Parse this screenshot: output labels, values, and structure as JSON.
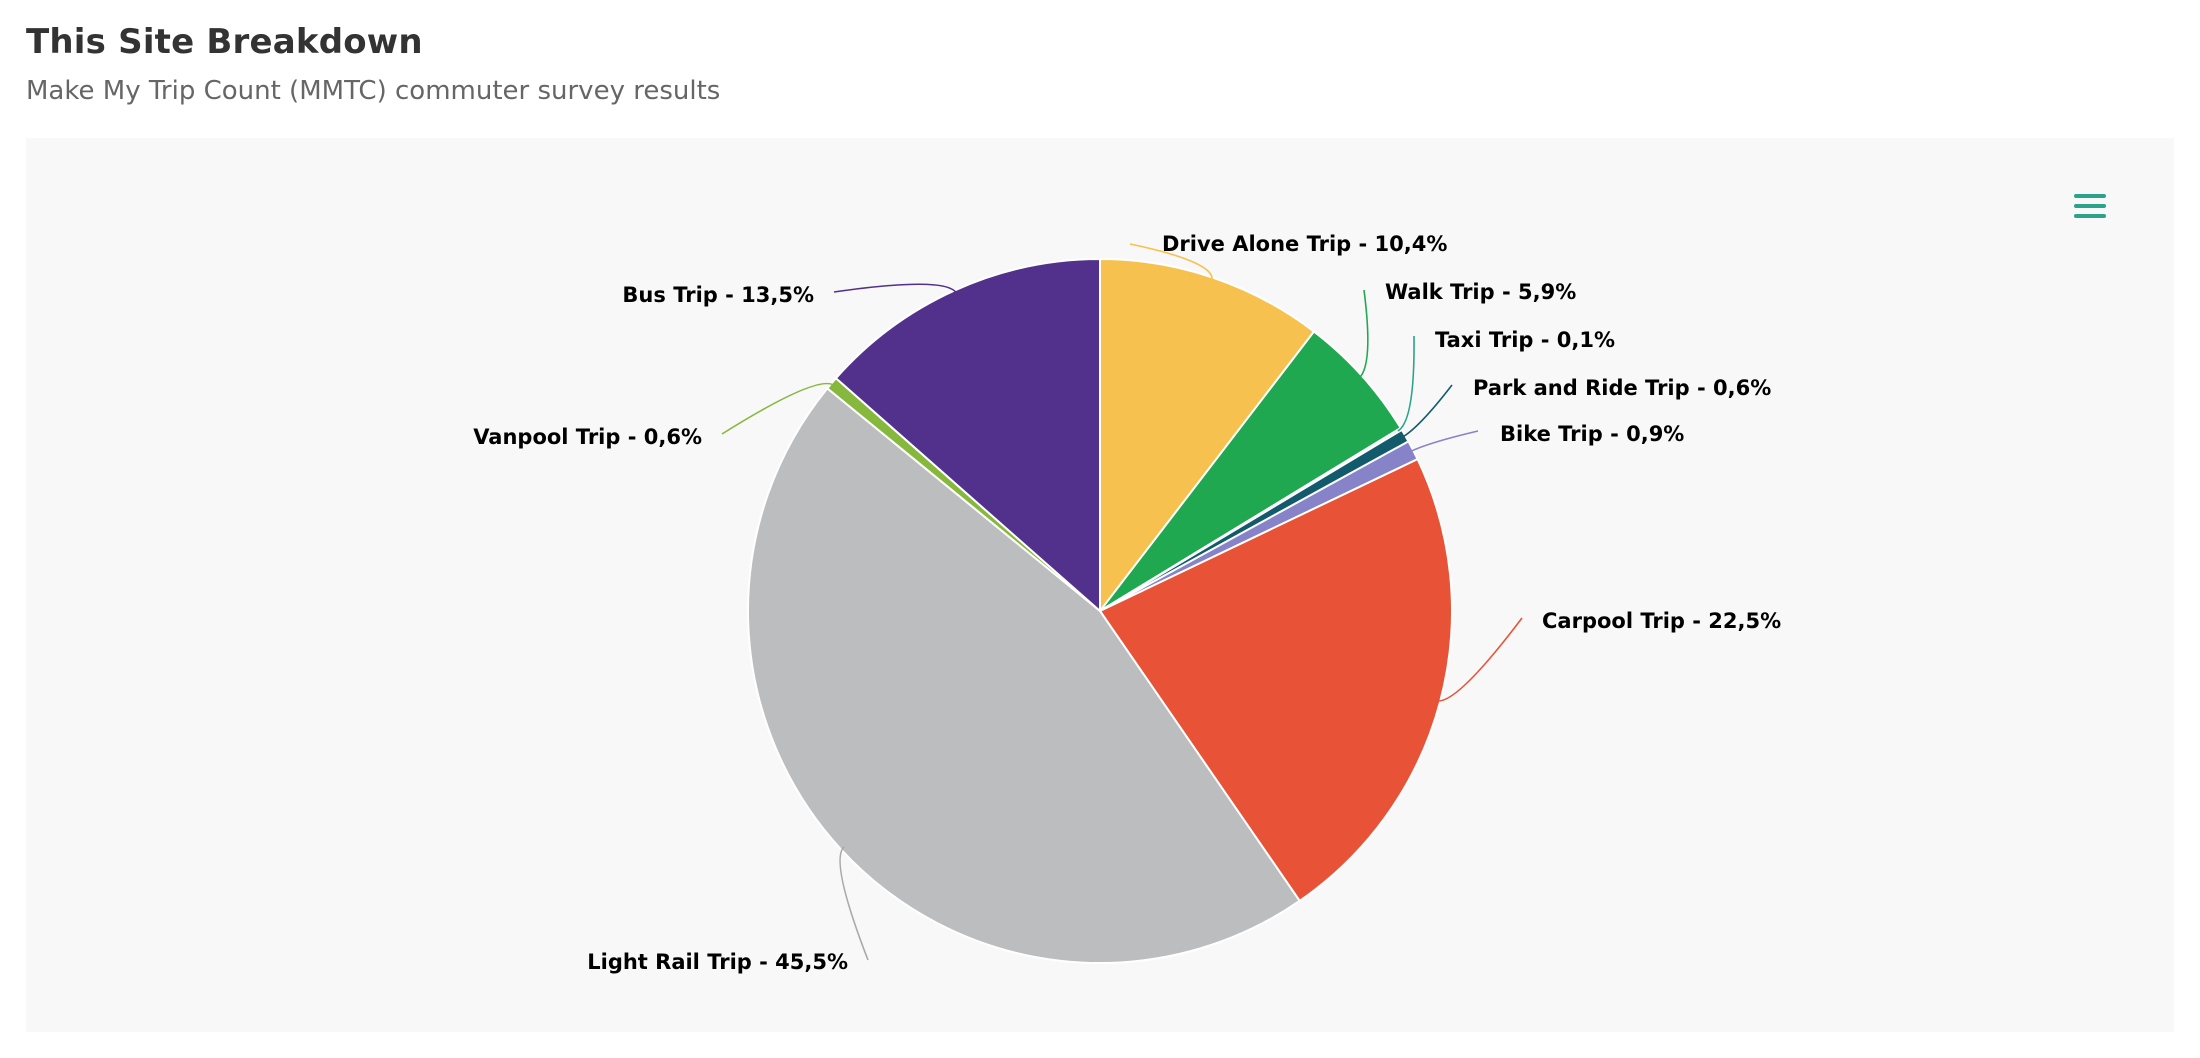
{
  "header": {
    "title": "This Site Breakdown",
    "subtitle": "Make My Trip Count (MMTC) commuter survey results"
  },
  "chart_menu": {
    "icon": "hamburger-menu-icon",
    "color": "#2aa38a"
  },
  "chart_data": {
    "type": "pie",
    "title": "",
    "data_label_format": "{name} - {value}%",
    "decimal_separator": ",",
    "start_angle": "top, clockwise",
    "slices": [
      {
        "name": "Drive Alone Trip",
        "value": 10.4,
        "color": "#f6c14e"
      },
      {
        "name": "Walk Trip",
        "value": 5.9,
        "color": "#20a850"
      },
      {
        "name": "Taxi Trip",
        "value": 0.1,
        "color": "#2aa38a"
      },
      {
        "name": "Park and Ride Trip",
        "value": 0.6,
        "color": "#135a6c"
      },
      {
        "name": "Bike Trip",
        "value": 0.9,
        "color": "#8683c9"
      },
      {
        "name": "Carpool Trip",
        "value": 22.5,
        "color": "#e85337"
      },
      {
        "name": "Light Rail Trip",
        "value": 45.5,
        "color": "#bcbdbf"
      },
      {
        "name": "Vanpool Trip",
        "value": 0.6,
        "color": "#86b83e"
      },
      {
        "name": "Bus Trip",
        "value": 13.5,
        "color": "#52318d"
      }
    ]
  }
}
